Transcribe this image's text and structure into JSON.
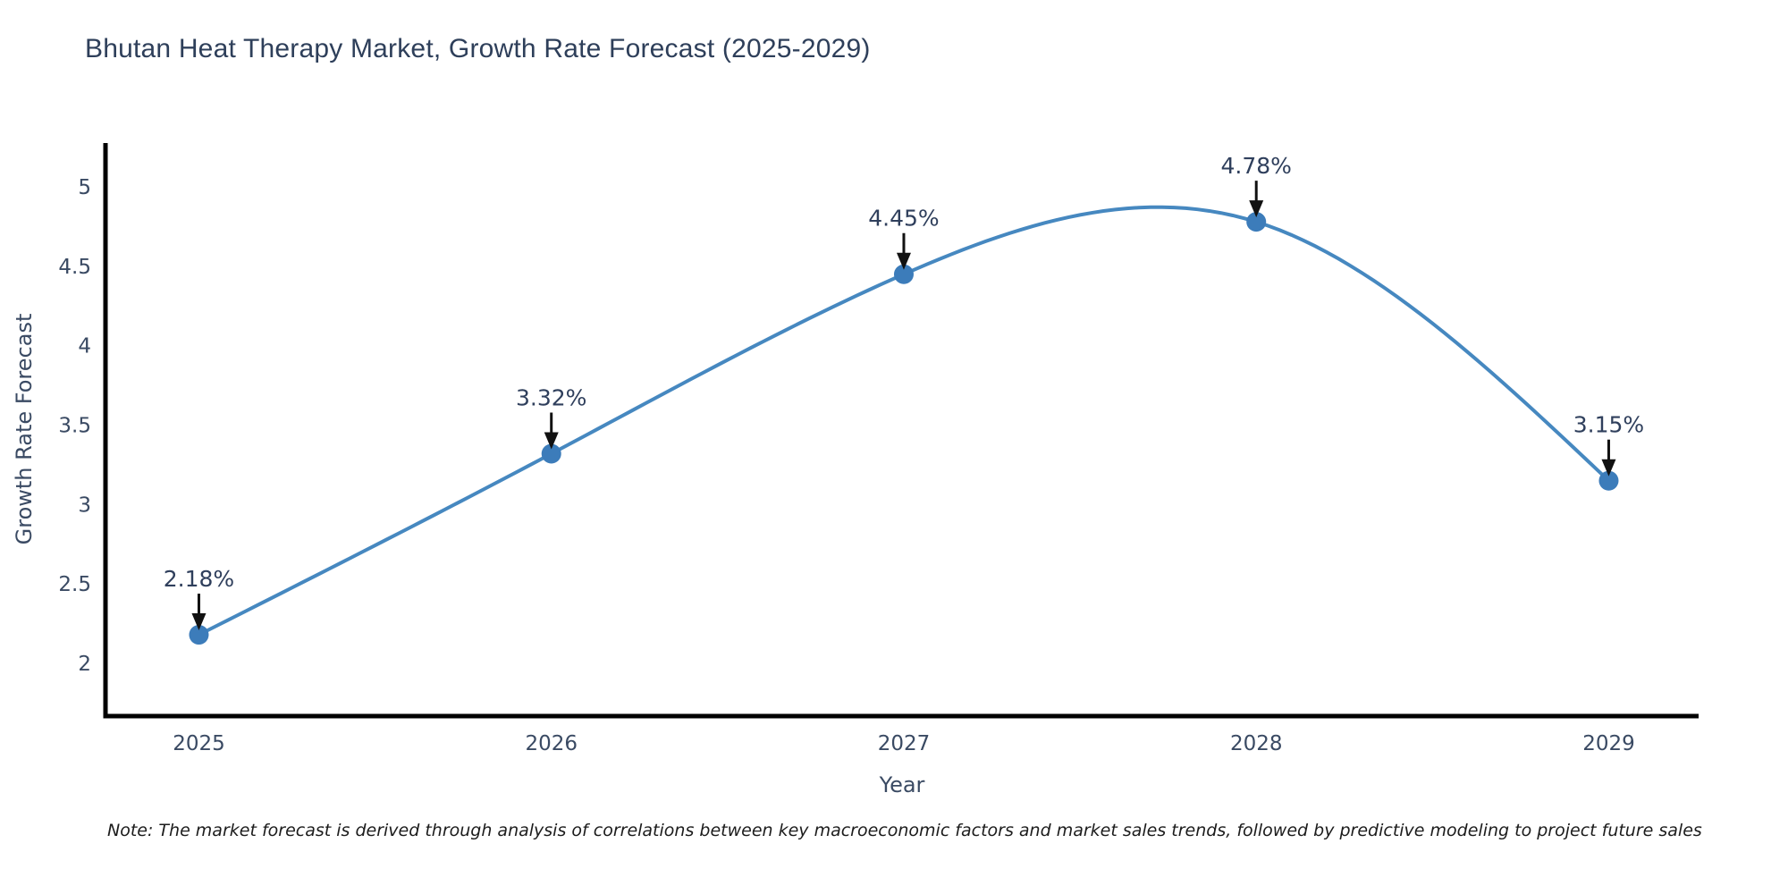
{
  "title": "Bhutan Heat Therapy Market, Growth Rate Forecast (2025-2029)",
  "note": "Note: The market forecast is derived through analysis of correlations between key macroeconomic factors and market sales trends, followed by predictive modeling to project future sales",
  "chart_data": {
    "type": "line",
    "title": "Bhutan Heat Therapy Market, Growth Rate Forecast (2025-2029)",
    "xlabel": "Year",
    "ylabel": "Growth Rate Forecast",
    "categories": [
      "2025",
      "2026",
      "2027",
      "2028",
      "2029"
    ],
    "x": [
      2025,
      2026,
      2027,
      2028,
      2029
    ],
    "values": [
      2.18,
      3.32,
      4.45,
      4.78,
      3.15
    ],
    "point_labels": [
      "2.18%",
      "3.32%",
      "4.45%",
      "4.78%",
      "3.15%"
    ],
    "yticks": [
      2,
      2.5,
      3,
      3.5,
      4,
      4.5,
      5
    ],
    "ytick_labels": [
      "2",
      "2.5",
      "3",
      "3.5",
      "4",
      "4.5",
      "5"
    ],
    "xlim": [
      2024.735,
      2029.255
    ],
    "ylim": [
      1.668,
      5.276
    ],
    "grid": false,
    "legend": "none",
    "smooth": true,
    "line_color": "#4688c0",
    "marker_color": "#3c7cba",
    "axis_color": "#000000",
    "arrow_color": "#111111",
    "label_color": "#2f3f5c",
    "tick_color": "#3a4a63",
    "title_color": "#2e3f5a"
  }
}
